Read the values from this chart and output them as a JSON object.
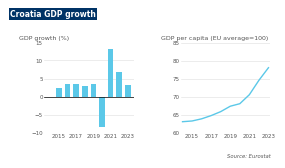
{
  "title": "Croatia GDP growth",
  "bar_ylabel": "GDP growth (%)",
  "bar_years": [
    2014,
    2015,
    2016,
    2017,
    2018,
    2019,
    2020,
    2021,
    2022,
    2023
  ],
  "bar_values": [
    -0.1,
    2.5,
    3.5,
    3.4,
    2.8,
    3.4,
    -8.6,
    13.1,
    6.9,
    3.1
  ],
  "bar_color": "#5bc8e8",
  "bar_xlim": [
    2013.3,
    2023.7
  ],
  "bar_ylim": [
    -10,
    15
  ],
  "bar_yticks": [
    -10,
    -5,
    0,
    5,
    10,
    15
  ],
  "bar_xticks": [
    2015,
    2017,
    2019,
    2021,
    2023
  ],
  "line_ylabel": "GDP per capita (EU average=100)",
  "line_years": [
    2014,
    2015,
    2016,
    2017,
    2018,
    2019,
    2020,
    2021,
    2022,
    2023
  ],
  "line_values": [
    63.0,
    63.2,
    63.8,
    64.7,
    65.8,
    67.3,
    68.0,
    70.5,
    74.5,
    78.0
  ],
  "line_color": "#5bc8e8",
  "line_xlim": [
    2013.8,
    2023.2
  ],
  "line_ylim": [
    60,
    85
  ],
  "line_yticks": [
    60,
    65,
    70,
    75,
    80,
    85
  ],
  "line_xticks": [
    2015,
    2017,
    2019,
    2021,
    2023
  ],
  "source": "Source: Eurostat",
  "title_color": "#1a1a2e",
  "label_color": "#555555",
  "bg_color": "#ffffff",
  "grid_color": "#dddddd",
  "title_fontsize": 5.5,
  "sublabel_fontsize": 4.5,
  "tick_fontsize": 4.0,
  "source_fontsize": 3.8,
  "title_bg": "#003366"
}
